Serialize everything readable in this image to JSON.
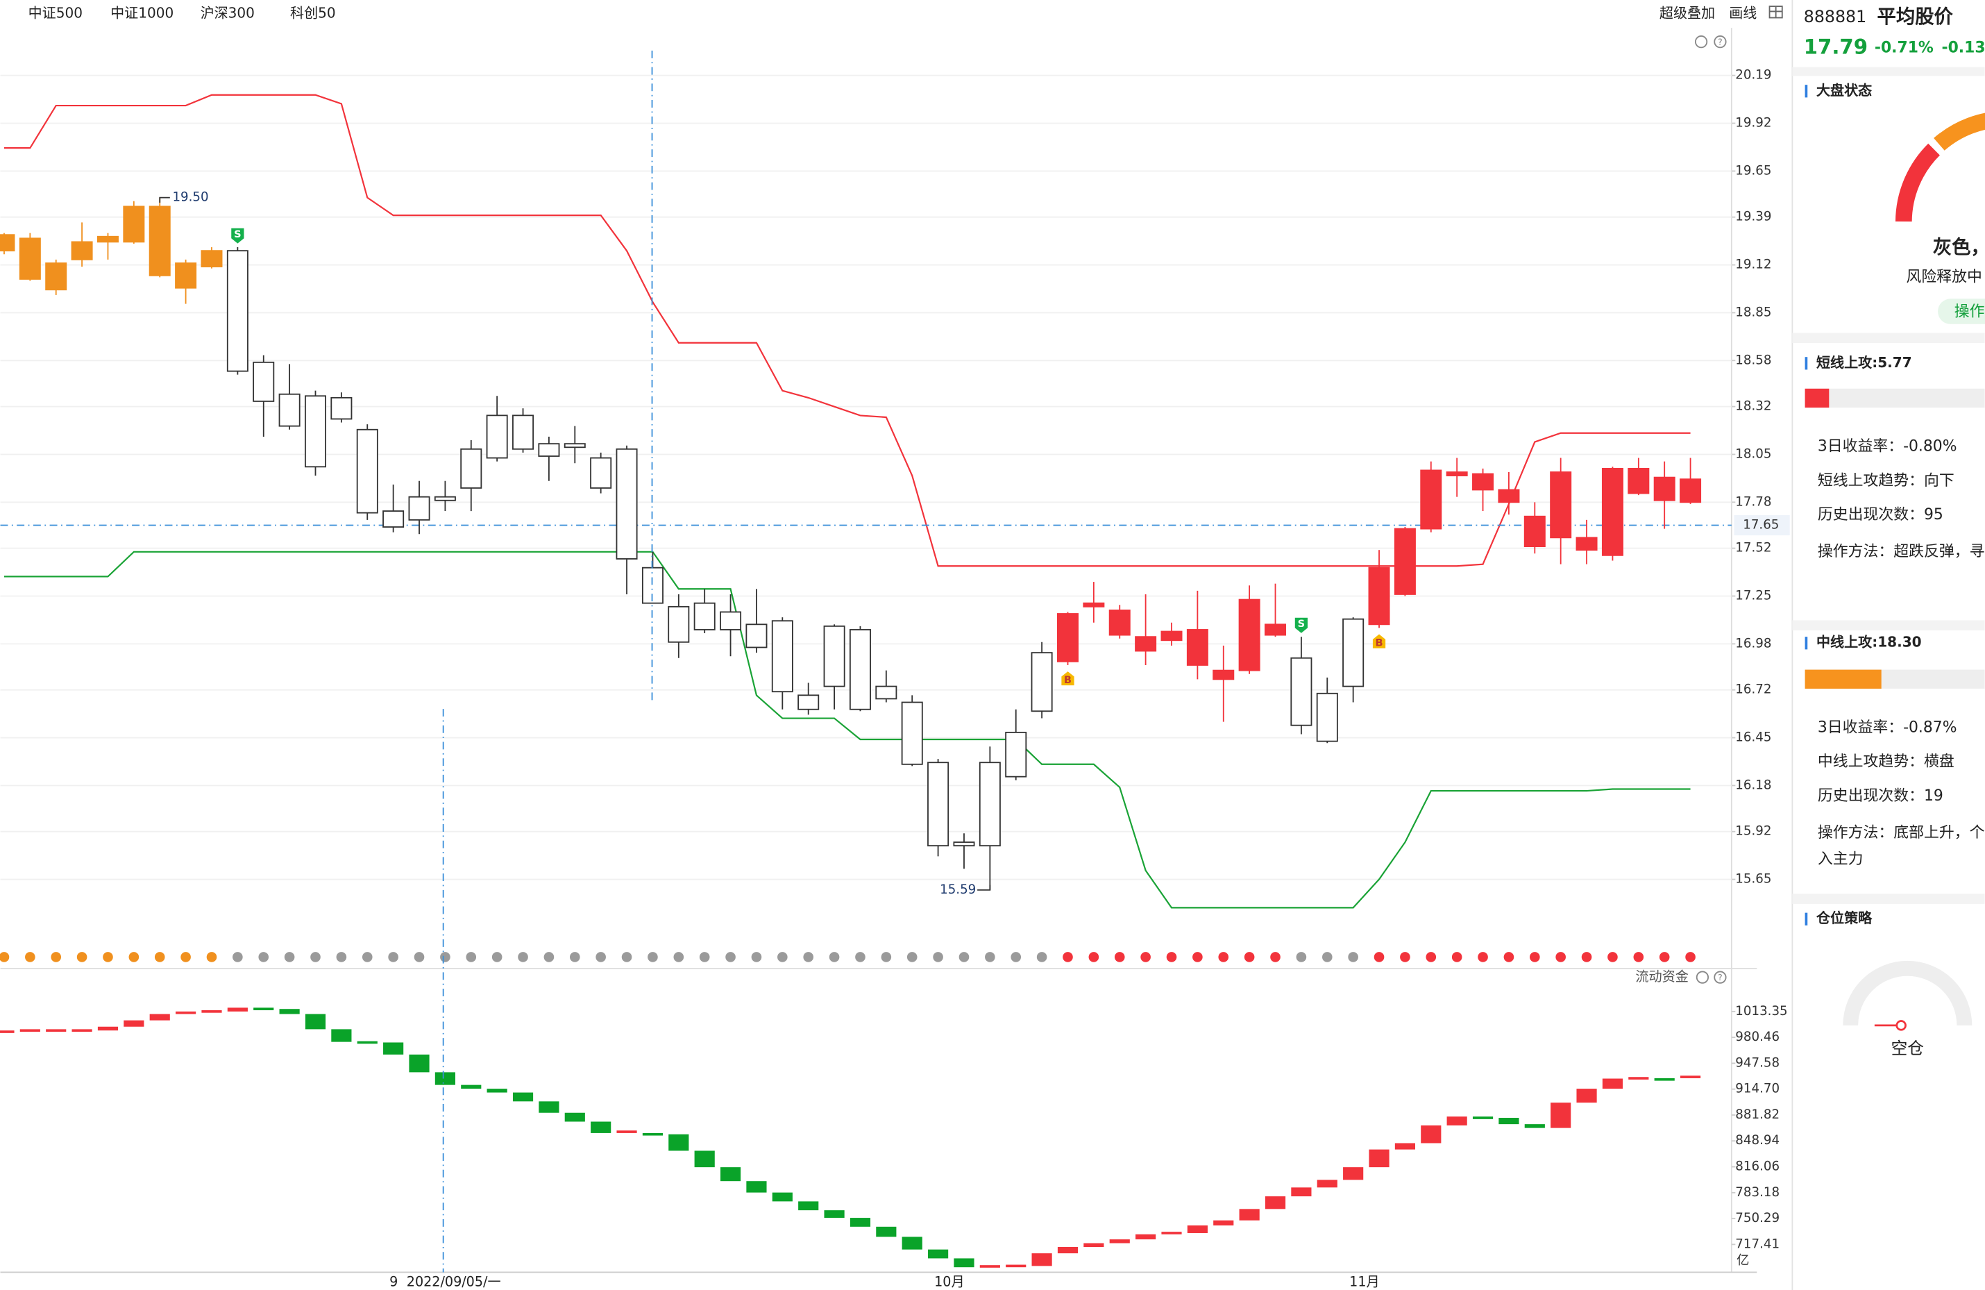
{
  "tabs": [
    "中证500",
    "中证1000",
    "沪深300",
    "科创50"
  ],
  "toolbar": [
    "超级叠加",
    "画线"
  ],
  "chart_data": [
    {
      "type": "candlestick",
      "ylim": [
        15.29,
        20.33
      ],
      "yticks": [
        20.19,
        19.92,
        19.65,
        19.39,
        19.12,
        18.85,
        18.58,
        18.32,
        18.05,
        17.78,
        17.52,
        17.25,
        16.98,
        16.72,
        16.45,
        16.18,
        15.92,
        15.65
      ],
      "grid": true,
      "open": [
        19.29,
        19.27,
        19.13,
        19.25,
        19.28,
        19.45,
        19.45,
        19.13,
        19.2,
        19.2,
        18.57,
        18.39,
        18.38,
        18.37,
        18.19,
        17.73,
        17.81,
        17.81,
        18.08,
        18.27,
        18.27,
        18.11,
        18.11,
        18.03,
        18.08,
        17.41,
        17.19,
        17.21,
        17.16,
        17.09,
        17.11,
        16.69,
        17.08,
        17.06,
        16.74,
        16.65,
        16.31,
        15.86,
        16.31,
        16.48,
        16.93,
        16.88,
        17.19,
        17.03,
        16.94,
        17.0,
        16.86,
        16.78,
        16.83,
        17.03,
        16.9,
        16.7,
        17.12,
        17.09,
        17.26,
        17.63,
        17.93,
        17.85,
        17.78,
        17.53,
        17.58,
        17.51,
        17.48,
        17.83,
        17.79,
        17.78
      ],
      "high": [
        19.3,
        19.3,
        19.15,
        19.36,
        19.3,
        19.48,
        19.5,
        19.15,
        19.22,
        19.22,
        18.61,
        18.56,
        18.41,
        18.4,
        18.22,
        17.88,
        17.9,
        17.9,
        18.13,
        18.38,
        18.31,
        18.15,
        18.21,
        18.06,
        18.1,
        17.5,
        17.26,
        17.29,
        17.26,
        17.29,
        17.13,
        16.76,
        17.09,
        17.08,
        16.83,
        16.69,
        16.33,
        15.91,
        16.4,
        16.61,
        16.99,
        17.16,
        17.33,
        17.2,
        17.26,
        17.1,
        17.28,
        16.97,
        17.31,
        17.32,
        17.02,
        16.79,
        17.13,
        17.51,
        17.64,
        18.01,
        18.03,
        17.97,
        17.95,
        17.78,
        18.03,
        17.68,
        17.98,
        18.03,
        18.01,
        18.03
      ],
      "low": [
        19.18,
        19.03,
        18.95,
        19.11,
        19.15,
        19.24,
        19.05,
        18.9,
        19.1,
        18.5,
        18.15,
        18.19,
        17.93,
        18.23,
        17.68,
        17.61,
        17.6,
        17.73,
        17.73,
        18.01,
        18.06,
        17.9,
        18.0,
        17.83,
        17.26,
        17.21,
        16.9,
        17.04,
        16.91,
        16.93,
        16.61,
        16.58,
        16.61,
        16.6,
        16.65,
        16.29,
        15.78,
        15.71,
        15.59,
        16.21,
        16.56,
        16.86,
        17.1,
        17.01,
        16.86,
        16.97,
        16.78,
        16.54,
        16.81,
        17.02,
        16.47,
        16.42,
        16.65,
        17.07,
        17.25,
        17.61,
        17.81,
        17.73,
        17.71,
        17.49,
        17.43,
        17.43,
        17.45,
        17.82,
        17.63,
        17.77
      ],
      "close": [
        19.2,
        19.04,
        18.98,
        19.15,
        19.25,
        19.25,
        19.06,
        18.99,
        19.11,
        18.52,
        18.35,
        18.21,
        17.98,
        18.25,
        17.72,
        17.64,
        17.68,
        17.79,
        17.86,
        18.03,
        18.08,
        18.04,
        18.09,
        17.86,
        17.46,
        17.21,
        16.99,
        17.06,
        17.06,
        16.96,
        16.71,
        16.61,
        16.74,
        16.61,
        16.67,
        16.3,
        15.84,
        15.84,
        15.84,
        16.23,
        16.6,
        17.15,
        17.21,
        17.17,
        17.02,
        17.05,
        17.06,
        16.83,
        17.23,
        17.09,
        16.52,
        16.43,
        16.74,
        17.41,
        17.63,
        17.96,
        17.95,
        17.94,
        17.85,
        17.7,
        17.95,
        17.58,
        17.97,
        17.97,
        17.92,
        17.91
      ],
      "colors": [
        "#f0901e",
        "#f0901e",
        "#f0901e",
        "#f0901e",
        "#f0901e",
        "#f0901e",
        "#f0901e",
        "#f0901e",
        "#f0901e",
        "#ffffff",
        "#ffffff",
        "#ffffff",
        "#ffffff",
        "#ffffff",
        "#ffffff",
        "#ffffff",
        "#ffffff",
        "#ffffff",
        "#ffffff",
        "#ffffff",
        "#ffffff",
        "#ffffff",
        "#ffffff",
        "#ffffff",
        "#ffffff",
        "#ffffff",
        "#ffffff",
        "#ffffff",
        "#ffffff",
        "#ffffff",
        "#ffffff",
        "#ffffff",
        "#ffffff",
        "#ffffff",
        "#ffffff",
        "#ffffff",
        "#ffffff",
        "#ffffff",
        "#ffffff",
        "#ffffff",
        "#ffffff",
        "#f2333b",
        "#f2333b",
        "#f2333b",
        "#f2333b",
        "#f2333b",
        "#f2333b",
        "#f2333b",
        "#f2333b",
        "#f2333b",
        "#ffffff",
        "#ffffff",
        "#ffffff",
        "#f2333b",
        "#f2333b",
        "#f2333b",
        "#f2333b",
        "#f2333b",
        "#f2333b",
        "#f2333b",
        "#f2333b",
        "#f2333b",
        "#f2333b",
        "#f2333b",
        "#f2333b",
        "#f2333b"
      ],
      "series": [
        {
          "color": "#f2333b",
          "values": [
            19.78,
            19.78,
            20.02,
            20.02,
            20.02,
            20.02,
            20.02,
            20.02,
            20.08,
            20.08,
            20.08,
            20.08,
            20.08,
            20.03,
            19.5,
            19.4,
            19.4,
            19.4,
            19.4,
            19.4,
            19.4,
            19.4,
            19.4,
            19.4,
            19.2,
            18.91,
            18.68,
            18.68,
            18.68,
            18.68,
            18.41,
            18.37,
            18.32,
            18.27,
            18.26,
            17.93,
            17.42,
            17.42,
            17.42,
            17.42,
            17.42,
            17.42,
            17.42,
            17.42,
            17.42,
            17.42,
            17.42,
            17.42,
            17.42,
            17.42,
            17.42,
            17.42,
            17.42,
            17.42,
            17.42,
            17.42,
            17.42,
            17.43,
            17.77,
            18.12,
            18.17,
            18.17,
            18.17,
            18.17,
            18.17,
            18.17
          ]
        },
        {
          "color": "#1aa336",
          "values": [
            17.36,
            17.36,
            17.36,
            17.36,
            17.36,
            17.5,
            17.5,
            17.5,
            17.5,
            17.5,
            17.5,
            17.5,
            17.5,
            17.5,
            17.5,
            17.5,
            17.5,
            17.5,
            17.5,
            17.5,
            17.5,
            17.5,
            17.5,
            17.5,
            17.5,
            17.5,
            17.29,
            17.29,
            17.29,
            16.69,
            16.56,
            16.56,
            16.56,
            16.44,
            16.44,
            16.44,
            16.44,
            16.44,
            16.44,
            16.44,
            16.3,
            16.3,
            16.3,
            16.17,
            15.7,
            15.49,
            15.49,
            15.49,
            15.49,
            15.49,
            15.49,
            15.49,
            15.49,
            15.65,
            15.86,
            16.15,
            16.15,
            16.15,
            16.15,
            16.15,
            16.15,
            16.15,
            16.16,
            16.16,
            16.16,
            16.16
          ]
        }
      ],
      "last_price": 17.65,
      "annotations": [
        {
          "index": 6,
          "value": 19.5,
          "label": "19.50"
        },
        {
          "index": 38,
          "value": 15.59,
          "label": "15.59"
        }
      ],
      "signals": [
        {
          "index": 9,
          "label": "S"
        },
        {
          "index": 41,
          "label": "B"
        },
        {
          "index": 50,
          "label": "S"
        },
        {
          "index": 53,
          "label": "B"
        }
      ]
    },
    {
      "type": "flow-bar",
      "title": "流动资金",
      "y_label": "亿",
      "ylim": [
        682.03,
        1035.87
      ],
      "yticks": [
        1013.35,
        980.46,
        947.58,
        {
          "value": 914.7,
          "label": "914.70"
        },
        881.82,
        848.94,
        816.06,
        783.18,
        750.29,
        717.41
      ],
      "values": [
        987.62,
        989.22,
        989.22,
        989.22,
        994.05,
        1002.09,
        1010.13,
        1011.74,
        1013.35,
        1018.18,
        1016.57,
        1010.13,
        990.83,
        974.75,
        974.0,
        958.66,
        936.15,
        920.06,
        915.24,
        910.41,
        899.15,
        884.68,
        873.42,
        858.94,
        860.55,
        857.34,
        836.43,
        815.52,
        797.83,
        783.35,
        772.09,
        760.83,
        751.18,
        739.92,
        727.05,
        710.97,
        699.71,
        688.45,
        689.5,
        690.05,
        706.14,
        714.19,
        719.01,
        723.84,
        730.27,
        731.87,
        741.52,
        747.96,
        762.43,
        778.52,
        789.78,
        799.43,
        815.52,
        838.04,
        846.08,
        868.6,
        879.86,
        878.25,
        870.21,
        865.38,
        897.55,
        915.24,
        928.11,
        928.5,
        927.0,
        930.2
      ],
      "categories": [
        null,
        null,
        null,
        null,
        null,
        null,
        null,
        null,
        null,
        null,
        null,
        null,
        null,
        null,
        null,
        "9",
        null,
        null,
        null,
        null,
        null,
        null,
        null,
        null,
        null,
        null,
        null,
        null,
        null,
        null,
        null,
        null,
        null,
        null,
        null,
        null,
        "10月",
        null,
        null,
        null,
        null,
        null,
        null,
        null,
        null,
        null,
        null,
        null,
        null,
        null,
        null,
        null,
        "11月",
        null,
        null,
        null,
        null,
        null,
        null,
        null,
        null,
        null,
        null,
        null,
        null,
        null
      ],
      "crosshair_label": "2022/09/05/一"
    }
  ],
  "panel": {
    "code": "888881",
    "name": "平均股价",
    "price": "17.79",
    "change_pct": "-0.71%",
    "change": "-0.13",
    "market": {
      "title": "大盘状态",
      "status": "灰色，",
      "desc": "风险释放中",
      "button": "操作"
    },
    "short": {
      "title": "短线上攻:5.77",
      "value": 5.77,
      "rows": [
        "3日收益率：-0.80%",
        "短线上攻趋势：向下",
        "历史出现次数：95",
        "操作方法：超跌反弹，寻"
      ]
    },
    "mid": {
      "title": "中线上攻:18.30",
      "value": 18.3,
      "rows": [
        "3日收益率：-0.87%",
        "中线上攻趋势：横盘",
        "历史出现次数：19",
        "操作方法：底部上升，个",
        "入主力"
      ]
    },
    "position": {
      "title": "仓位策略",
      "label": "空仓"
    }
  }
}
